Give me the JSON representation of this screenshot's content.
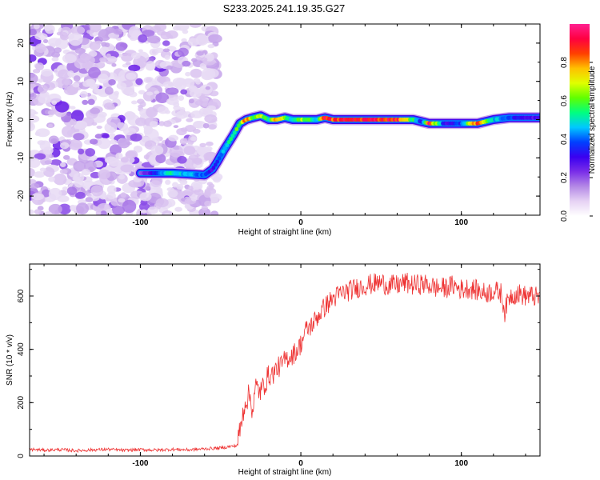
{
  "title": "S233.2025.241.19.35.G27",
  "chart_data": [
    {
      "type": "heatmap",
      "name": "spectrogram",
      "xlabel": "Height of straight line (km)",
      "ylabel": "Frequency (Hz)",
      "xlim": [
        -169,
        149
      ],
      "ylim": [
        -25,
        25
      ],
      "xticks": [
        -100,
        0,
        100
      ],
      "xtick_labels": [
        "-100",
        "0",
        "100"
      ],
      "yticks": [
        -20,
        -10,
        0,
        10,
        20
      ],
      "ytick_labels": [
        "-20",
        "-10",
        "0",
        "10",
        "20"
      ],
      "colorbar": {
        "label": "Normalized spectral amplitude",
        "range": [
          0,
          1
        ],
        "ticks": [
          0.0,
          0.2,
          0.4,
          0.6,
          0.8
        ],
        "tick_labels": [
          "0.0",
          "0.2",
          "0.4",
          "0.6",
          "0.8"
        ],
        "colors": [
          "#ffffff",
          "#e6d2f4",
          "#b488e6",
          "#7a2ee8",
          "#3a00f0",
          "#0040ff",
          "#00c8ff",
          "#00ff80",
          "#60ff00",
          "#e0ff00",
          "#ffc000",
          "#ff4000",
          "#ff0040",
          "#ff2090"
        ]
      },
      "noise_region_x": [
        -169,
        -52
      ],
      "ridge": {
        "x": [
          -100,
          -80,
          -60,
          -55,
          -52,
          -48,
          -45,
          -42,
          -38,
          -34,
          -30,
          -25,
          -20,
          -15,
          -10,
          -5,
          0,
          5,
          10,
          15,
          20,
          30,
          40,
          50,
          60,
          70,
          75,
          80,
          90,
          100,
          110,
          120,
          130,
          140,
          149
        ],
        "frequency": [
          -14,
          -14,
          -14.5,
          -13,
          -11,
          -8,
          -6,
          -4,
          -1,
          0,
          0.5,
          1,
          0,
          0,
          0.5,
          0,
          0,
          0,
          0,
          0.5,
          0,
          0,
          0,
          0,
          0,
          0,
          -0.5,
          -1,
          -1,
          -1,
          -1,
          0,
          0.5,
          0.5,
          0.5
        ],
        "amplitude": [
          0.2,
          0.55,
          0.4,
          0.3,
          0.35,
          0.5,
          0.55,
          0.6,
          0.6,
          0.9,
          0.6,
          0.7,
          0.5,
          0.9,
          0.6,
          0.5,
          0.7,
          0.6,
          0.5,
          0.95,
          0.9,
          0.95,
          0.95,
          0.95,
          0.95,
          0.6,
          0.3,
          0.95,
          0.3,
          0.4,
          0.95,
          0.5,
          0.4,
          0.3,
          0.3
        ]
      }
    },
    {
      "type": "line",
      "name": "snr",
      "xlabel": "Height of straight line (km)",
      "ylabel": "SNR (10 * v/v)",
      "xlim": [
        -169,
        149
      ],
      "ylim": [
        0,
        720
      ],
      "xticks": [
        -100,
        0,
        100
      ],
      "xtick_labels": [
        "-100",
        "0",
        "100"
      ],
      "yticks": [
        0,
        200,
        400,
        600
      ],
      "ytick_labels": [
        "0",
        "200",
        "400",
        "600"
      ],
      "color": "#ee3333",
      "series": [
        {
          "name": "SNR",
          "x": [
            -169,
            -160,
            -150,
            -140,
            -130,
            -120,
            -110,
            -100,
            -90,
            -80,
            -70,
            -60,
            -50,
            -45,
            -40,
            -37,
            -35,
            -32,
            -30,
            -28,
            -25,
            -22,
            -20,
            -17,
            -15,
            -12,
            -10,
            -8,
            -5,
            -2,
            0,
            3,
            5,
            8,
            10,
            15,
            20,
            25,
            30,
            35,
            40,
            45,
            50,
            55,
            60,
            65,
            70,
            75,
            80,
            85,
            90,
            95,
            100,
            105,
            110,
            115,
            120,
            125,
            127,
            130,
            135,
            140,
            145,
            149
          ],
          "values": [
            25,
            22,
            24,
            20,
            23,
            25,
            21,
            24,
            22,
            25,
            23,
            27,
            30,
            35,
            38,
            120,
            200,
            230,
            170,
            260,
            240,
            280,
            300,
            310,
            330,
            340,
            360,
            370,
            380,
            400,
            420,
            470,
            480,
            500,
            520,
            560,
            590,
            610,
            620,
            630,
            640,
            645,
            650,
            640,
            640,
            650,
            640,
            645,
            640,
            630,
            630,
            640,
            625,
            630,
            620,
            610,
            620,
            610,
            540,
            600,
            610,
            600,
            600,
            590
          ]
        }
      ]
    }
  ]
}
